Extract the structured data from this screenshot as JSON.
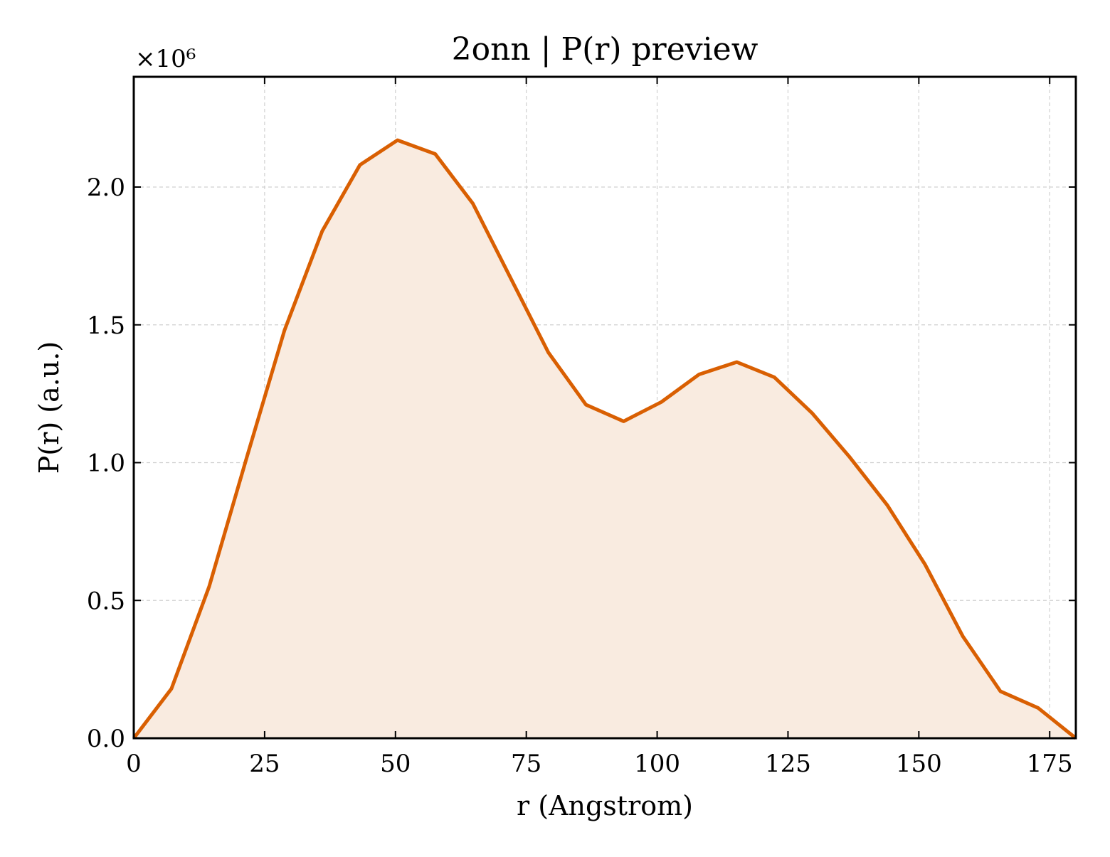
{
  "chart_data": {
    "type": "area",
    "title": "2onn | P(r) preview",
    "xlabel": "r (Angstrom)",
    "ylabel": "P(r) (a.u.)",
    "y_offset_label": "×10⁶",
    "y_multiplier": 1000000,
    "xlim": [
      0,
      180
    ],
    "ylim": [
      0,
      2.4
    ],
    "xticks": [
      0,
      25,
      50,
      75,
      100,
      125,
      150,
      175
    ],
    "yticks": [
      0.0,
      0.5,
      1.0,
      1.5,
      2.0
    ],
    "ytick_labels": [
      "0.0",
      "0.5",
      "1.0",
      "1.5",
      "2.0"
    ],
    "grid": true,
    "line_color": "#d95f02",
    "fill_color": "#f9ebe0",
    "series": [
      {
        "x": [
          0,
          7.2,
          14.4,
          21.6,
          28.8,
          36.0,
          43.2,
          50.4,
          57.6,
          64.8,
          72.0,
          79.2,
          86.4,
          93.6,
          100.8,
          108.0,
          115.2,
          122.4,
          129.6,
          136.8,
          144.0,
          151.2,
          158.4,
          165.6,
          172.8,
          180.0
        ],
        "y": [
          0.0,
          0.18,
          0.55,
          1.02,
          1.48,
          1.84,
          2.08,
          2.17,
          2.12,
          1.94,
          1.67,
          1.4,
          1.21,
          1.15,
          1.22,
          1.32,
          1.365,
          1.31,
          1.18,
          1.02,
          0.845,
          0.63,
          0.37,
          0.17,
          0.11,
          0.0
        ]
      }
    ]
  }
}
